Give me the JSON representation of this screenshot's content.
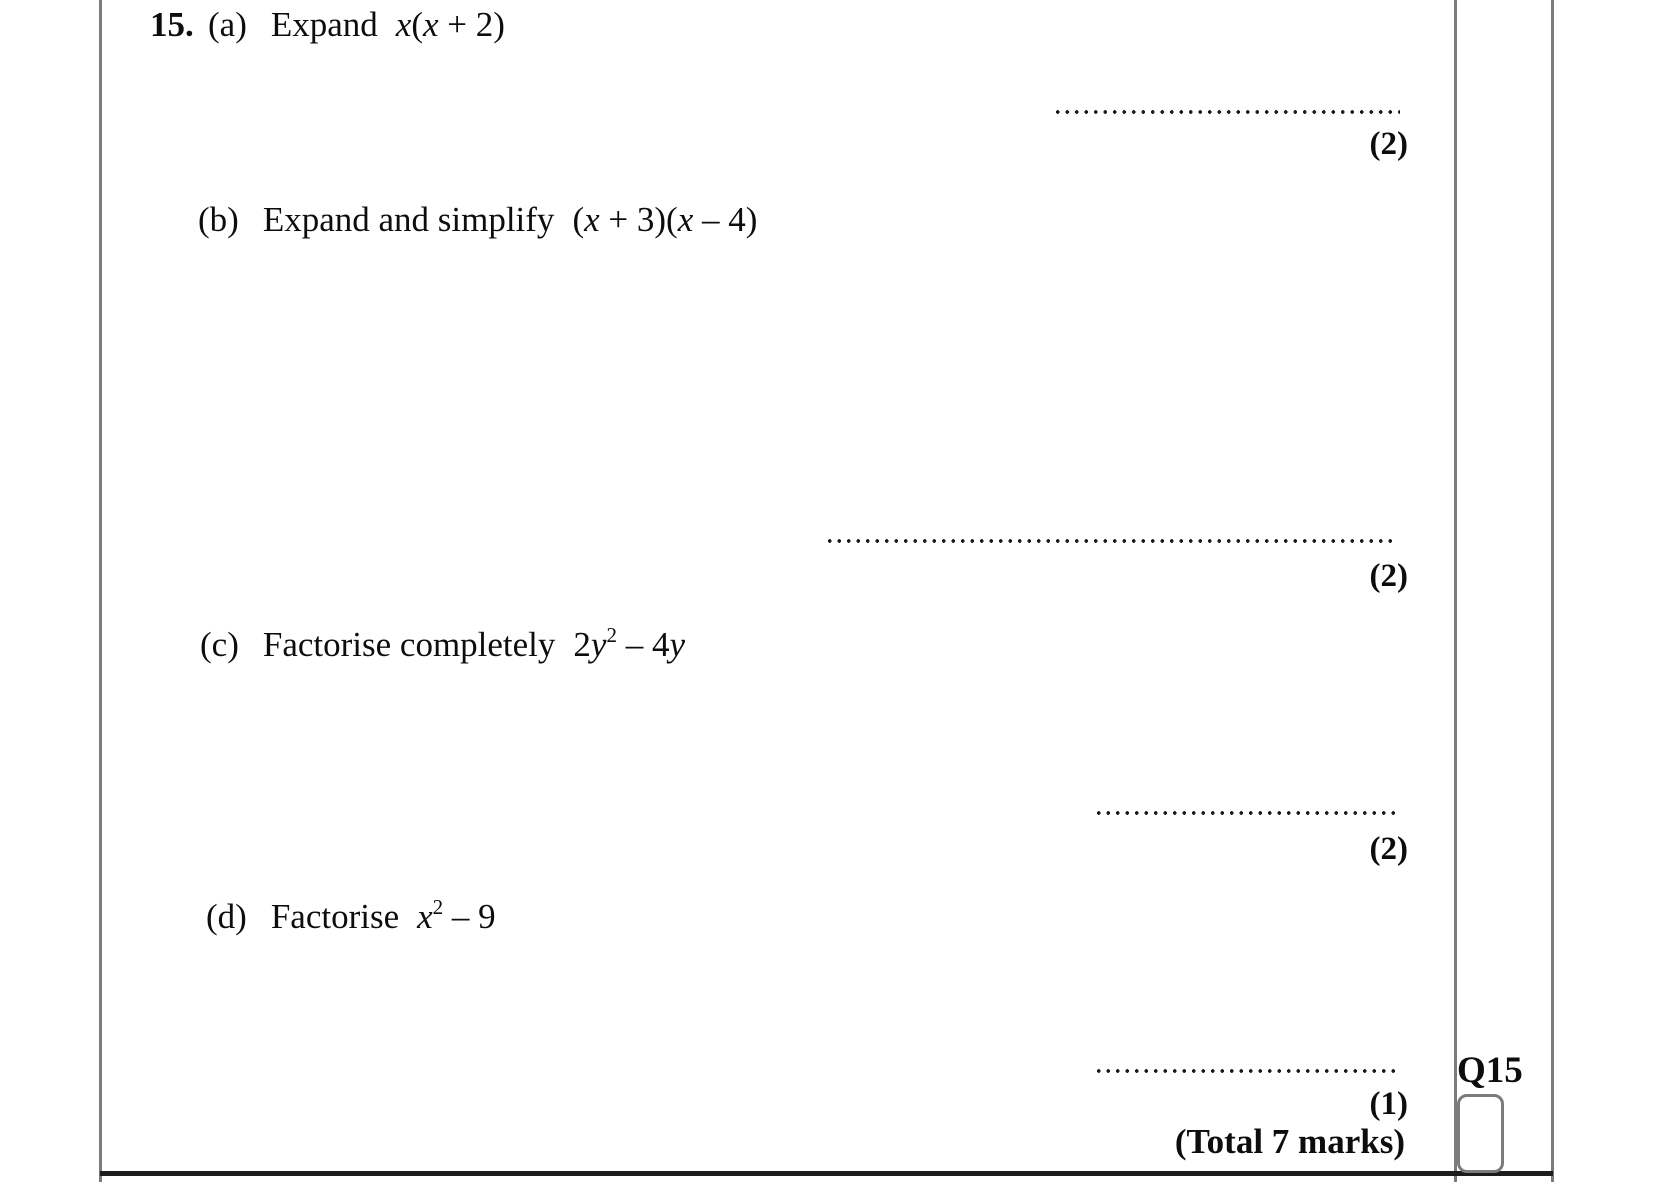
{
  "question": {
    "number": "15.",
    "parts": [
      {
        "label": "(a)",
        "prompt": "Expand",
        "expr": "x(x + 2)",
        "marks": "(2)"
      },
      {
        "label": "(b)",
        "prompt": "Expand and simplify",
        "expr": "(x + 3)(x – 4)",
        "marks": "(2)"
      },
      {
        "label": "(c)",
        "prompt": "Factorise completely",
        "expr": "2y^2 – 4y",
        "marks": "(2)"
      },
      {
        "label": "(d)",
        "prompt": "Factorise",
        "expr": "x^2 – 9",
        "marks": "(1)"
      }
    ],
    "total_marks": "(Total 7 marks)",
    "question_tag": "Q15"
  },
  "colors": {
    "text": "#0d0d0d",
    "border_gray": "#7b7b7b",
    "rule_black": "#1c1c1c"
  }
}
